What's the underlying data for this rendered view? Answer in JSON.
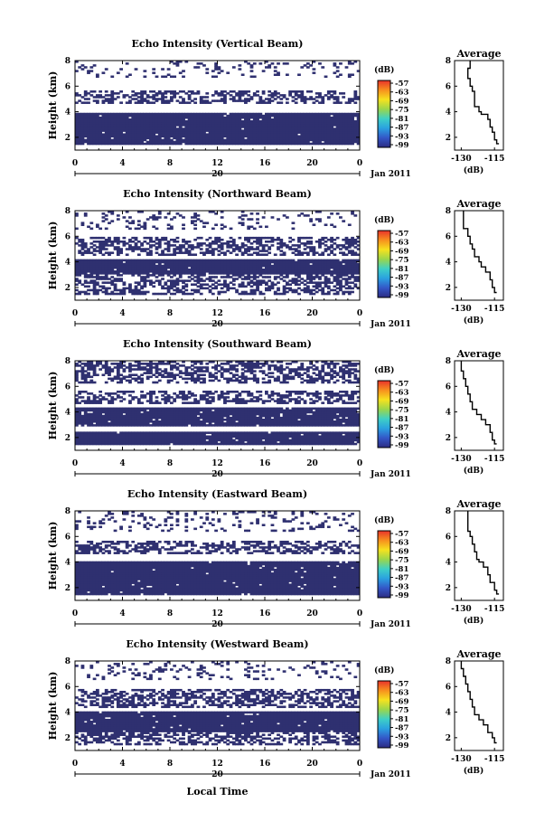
{
  "figure": {
    "xlabel": "Local Time",
    "panels": [
      {
        "title": "Echo Intensity (Vertical Beam)",
        "day": "20",
        "month_year": "Jan 2011"
      },
      {
        "title": "Echo Intensity (Northward Beam)",
        "day": "20",
        "month_year": "Jan 2011"
      },
      {
        "title": "Echo Intensity (Southward Beam)",
        "day": "20",
        "month_year": "Jan 2011"
      },
      {
        "title": "Echo Intensity (Eastward Beam)",
        "day": "20",
        "month_year": "Jan 2011"
      },
      {
        "title": "Echo Intensity (Westward Beam)",
        "day": "20",
        "month_year": "Jan 2011"
      }
    ],
    "main_ylabel": "Height (km)",
    "colorbar": {
      "unit_label": "(dB)",
      "tick_labels": [
        "-57",
        "-63",
        "-69",
        "-75",
        "-81",
        "-87",
        "-93",
        "-99"
      ],
      "colors": [
        "#e8322b",
        "#f7901e",
        "#f6e21f",
        "#9bd64b",
        "#3fd0c6",
        "#2aa1e0",
        "#3456c7",
        "#2c2c82"
      ]
    },
    "profile": {
      "title": "Average",
      "xlabel": "(dB)",
      "xtick_labels": [
        [
          "-130",
          "-115"
        ],
        [
          "-130",
          "-115"
        ],
        [
          "-130",
          "-115"
        ],
        [
          "-130",
          "-115"
        ],
        [
          "-130",
          "-115"
        ]
      ],
      "ytick_labels": [
        "2",
        "4",
        "6",
        "8"
      ]
    },
    "main_xtick_labels": [
      "0",
      "4",
      "8",
      "12",
      "16",
      "20",
      "0"
    ],
    "main_ytick_labels": [
      "2",
      "4",
      "6",
      "8"
    ],
    "colors": {
      "echo_fill": "#2f3070",
      "background": "#ffffff",
      "profile_line": "#000000"
    }
  },
  "chart_data": [
    {
      "type": "heatmap",
      "title": "Echo Intensity (Vertical Beam)",
      "xlabel": "",
      "ylabel": "Height (km)",
      "xlim": [
        0,
        24
      ],
      "ylim": [
        1,
        8
      ],
      "zlim_db": [
        -99,
        -57
      ],
      "layers": [
        {
          "from_km": 1.4,
          "to_km": 3.9,
          "echo": "solid"
        },
        {
          "from_km": 4.7,
          "to_km": 5.6,
          "echo": "patchy"
        },
        {
          "from_km": 6.7,
          "to_km": 8.0,
          "echo": "sparse"
        }
      ]
    },
    {
      "type": "line",
      "title": "Average",
      "xlabel": "(dB)",
      "ylabel": "",
      "xlim": [
        -133,
        -111
      ],
      "ylim": [
        1,
        8
      ],
      "points": [
        [
          -126,
          8
        ],
        [
          -127,
          7.4
        ],
        [
          -126,
          6.6
        ],
        [
          -125,
          6.0
        ],
        [
          -124,
          5.6
        ],
        [
          -124,
          5.0
        ],
        [
          -122,
          4.4
        ],
        [
          -121,
          4.0
        ],
        [
          -118,
          3.8
        ],
        [
          -117,
          3.4
        ],
        [
          -116,
          2.8
        ],
        [
          -115,
          2.4
        ],
        [
          -114,
          1.8
        ],
        [
          -113,
          1.5
        ]
      ]
    },
    {
      "type": "heatmap",
      "title": "Echo Intensity (Northward Beam)",
      "xlabel": "",
      "ylabel": "Height (km)",
      "xlim": [
        0,
        24
      ],
      "ylim": [
        1,
        8
      ],
      "zlim_db": [
        -99,
        -57
      ],
      "layers": [
        {
          "from_km": 1.4,
          "to_km": 3.1,
          "echo": "patchy"
        },
        {
          "from_km": 3.1,
          "to_km": 4.2,
          "echo": "solid"
        },
        {
          "from_km": 4.5,
          "to_km": 6.0,
          "echo": "patchy"
        },
        {
          "from_km": 6.6,
          "to_km": 8.0,
          "echo": "sparse"
        }
      ]
    },
    {
      "type": "line",
      "title": "Average",
      "xlabel": "(dB)",
      "ylabel": "",
      "xlim": [
        -133,
        -111
      ],
      "ylim": [
        1,
        8
      ],
      "points": [
        [
          -129,
          8
        ],
        [
          -129,
          7.4
        ],
        [
          -127,
          6.6
        ],
        [
          -126,
          6.0
        ],
        [
          -125,
          5.4
        ],
        [
          -124,
          5.0
        ],
        [
          -122,
          4.4
        ],
        [
          -121,
          4.0
        ],
        [
          -119,
          3.6
        ],
        [
          -117,
          3.2
        ],
        [
          -116,
          2.6
        ],
        [
          -115,
          2.0
        ],
        [
          -114,
          1.6
        ]
      ]
    },
    {
      "type": "heatmap",
      "title": "Echo Intensity (Southward Beam)",
      "xlabel": "",
      "ylabel": "Height (km)",
      "xlim": [
        0,
        24
      ],
      "ylim": [
        1,
        8
      ],
      "zlim_db": [
        -99,
        -57
      ],
      "layers": [
        {
          "from_km": 1.4,
          "to_km": 2.4,
          "echo": "solid"
        },
        {
          "from_km": 2.9,
          "to_km": 4.3,
          "echo": "solid"
        },
        {
          "from_km": 4.6,
          "to_km": 5.6,
          "echo": "patchy"
        },
        {
          "from_km": 6.2,
          "to_km": 8.0,
          "echo": "patchy"
        }
      ]
    },
    {
      "type": "line",
      "title": "Average",
      "xlabel": "(dB)",
      "ylabel": "",
      "xlim": [
        -133,
        -111
      ],
      "ylim": [
        1,
        8
      ],
      "points": [
        [
          -130,
          8
        ],
        [
          -129,
          7.2
        ],
        [
          -128,
          6.6
        ],
        [
          -127,
          6.0
        ],
        [
          -126,
          5.4
        ],
        [
          -125,
          4.8
        ],
        [
          -123,
          4.2
        ],
        [
          -121,
          3.8
        ],
        [
          -119,
          3.4
        ],
        [
          -117,
          3.0
        ],
        [
          -116,
          2.4
        ],
        [
          -115,
          1.8
        ],
        [
          -114,
          1.5
        ]
      ]
    },
    {
      "type": "heatmap",
      "title": "Echo Intensity (Eastward Beam)",
      "xlabel": "",
      "ylabel": "Height (km)",
      "xlim": [
        0,
        24
      ],
      "ylim": [
        1,
        8
      ],
      "zlim_db": [
        -99,
        -57
      ],
      "layers": [
        {
          "from_km": 1.4,
          "to_km": 4.0,
          "echo": "solid"
        },
        {
          "from_km": 4.6,
          "to_km": 5.6,
          "echo": "patchy"
        },
        {
          "from_km": 6.4,
          "to_km": 8.0,
          "echo": "sparse"
        }
      ]
    },
    {
      "type": "line",
      "title": "Average",
      "xlabel": "(dB)",
      "ylabel": "",
      "xlim": [
        -133,
        -111
      ],
      "ylim": [
        1,
        8
      ],
      "points": [
        [
          -127,
          8
        ],
        [
          -127,
          7.2
        ],
        [
          -126,
          6.4
        ],
        [
          -125,
          6.0
        ],
        [
          -124,
          5.4
        ],
        [
          -123,
          4.8
        ],
        [
          -122,
          4.2
        ],
        [
          -120,
          4.0
        ],
        [
          -118,
          3.6
        ],
        [
          -117,
          3.0
        ],
        [
          -115,
          2.4
        ],
        [
          -114,
          1.8
        ],
        [
          -113,
          1.5
        ]
      ]
    },
    {
      "type": "heatmap",
      "title": "Echo Intensity (Westward Beam)",
      "xlabel": "",
      "ylabel": "Height (km)",
      "xlim": [
        0,
        24
      ],
      "ylim": [
        1,
        8
      ],
      "zlim_db": [
        -99,
        -57
      ],
      "layers": [
        {
          "from_km": 1.4,
          "to_km": 2.4,
          "echo": "patchy"
        },
        {
          "from_km": 2.5,
          "to_km": 4.0,
          "echo": "solid"
        },
        {
          "from_km": 4.4,
          "to_km": 5.8,
          "echo": "patchy"
        },
        {
          "from_km": 6.6,
          "to_km": 8.0,
          "echo": "sparse"
        }
      ]
    },
    {
      "type": "line",
      "title": "Average",
      "xlabel": "(dB)",
      "ylabel": "",
      "xlim": [
        -133,
        -111
      ],
      "ylim": [
        1,
        8
      ],
      "points": [
        [
          -130,
          8
        ],
        [
          -129,
          7.4
        ],
        [
          -128,
          6.8
        ],
        [
          -127,
          6.2
        ],
        [
          -126,
          5.6
        ],
        [
          -125,
          5.0
        ],
        [
          -124,
          4.4
        ],
        [
          -122,
          3.8
        ],
        [
          -120,
          3.4
        ],
        [
          -118,
          3.0
        ],
        [
          -116,
          2.4
        ],
        [
          -115,
          2.0
        ],
        [
          -114,
          1.6
        ]
      ]
    }
  ]
}
